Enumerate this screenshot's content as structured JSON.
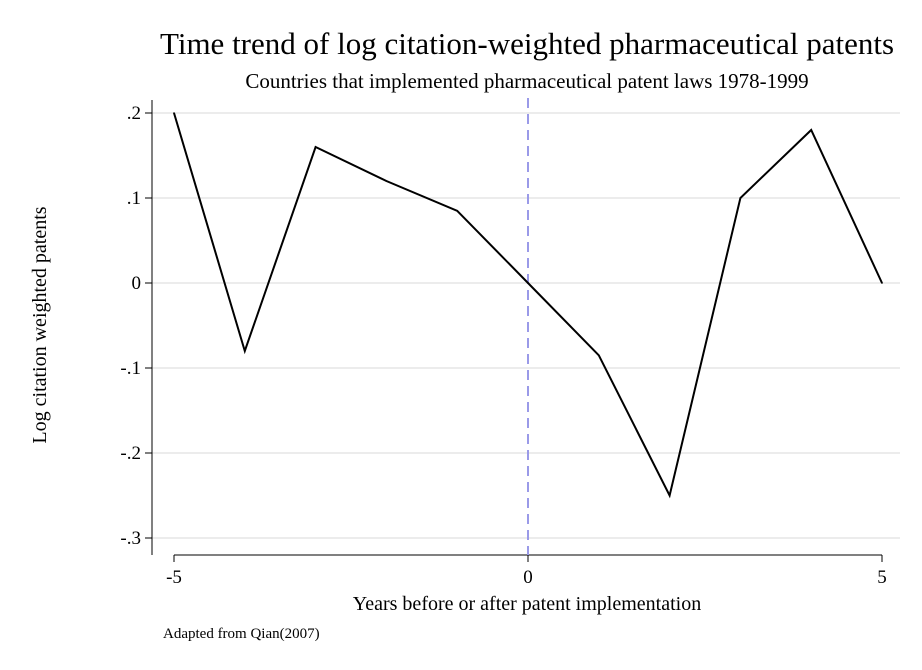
{
  "chart_data": {
    "type": "line",
    "title": "Time trend of log citation-weighted pharmaceutical patents",
    "subtitle": "Countries that implemented pharmaceutical patent laws 1978-1999",
    "xlabel": "Years before or after patent implementation",
    "ylabel": "Log citation weighted patents",
    "note": "Adapted from Qian(2007)",
    "x": [
      -5,
      -4,
      -3,
      -2,
      -1,
      0,
      1,
      2,
      3,
      4,
      5
    ],
    "series": [
      {
        "values": [
          0.2,
          -0.08,
          0.16,
          0.12,
          0.085,
          0.0,
          -0.085,
          -0.25,
          0.1,
          0.18,
          0.0
        ]
      }
    ],
    "xlim": [
      -5,
      5
    ],
    "ylim": [
      -0.3,
      0.2
    ],
    "x_ticks": [
      -5,
      0,
      5
    ],
    "x_tick_labels": [
      "-5",
      "0",
      "5"
    ],
    "y_ticks": [
      0.2,
      0.1,
      0,
      -0.1,
      -0.2,
      -0.3
    ],
    "y_tick_labels": [
      ".2",
      ".1",
      "0",
      "-.1",
      "-.2",
      "-.3"
    ],
    "reference_line": {
      "x": 0,
      "style": "dashed"
    },
    "grid": true,
    "colors": {
      "line": "#000000",
      "reference_line": "#9a9ae8",
      "grid": "#e6e6e6"
    }
  }
}
